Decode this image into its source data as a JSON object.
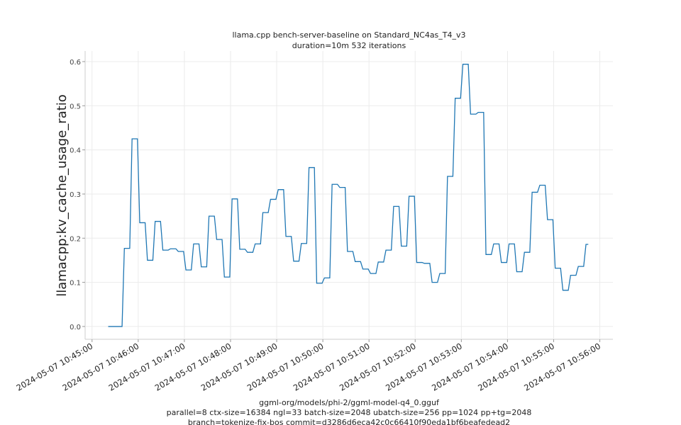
{
  "chart_data": {
    "type": "line",
    "title": [
      "llama.cpp bench-server-baseline on Standard_NC4as_T4_v3",
      "duration=10m 532 iterations"
    ],
    "ylabel": "llamacpp:kv_cache_usage_ratio",
    "xlabel": [
      "ggml-org/models/phi-2/ggml-model-q4_0.gguf",
      "parallel=8 ctx-size=16384 ngl=33 batch-size=2048 ubatch-size=256 pp=1024 pp+tg=2048",
      "branch=tokenize-fix-bos commit=d3286d6eca42c0c66410f90eda1bf6beafedead2"
    ],
    "color": "#1f77b4",
    "grid": true,
    "xlim": [
      "2024-05-07 10:44:51",
      "2024-05-07 10:56:17"
    ],
    "xticks": [
      "2024-05-07 10:45:00",
      "2024-05-07 10:46:00",
      "2024-05-07 10:47:00",
      "2024-05-07 10:48:00",
      "2024-05-07 10:49:00",
      "2024-05-07 10:50:00",
      "2024-05-07 10:51:00",
      "2024-05-07 10:52:00",
      "2024-05-07 10:53:00",
      "2024-05-07 10:54:00",
      "2024-05-07 10:55:00",
      "2024-05-07 10:56:00"
    ],
    "ylim": [
      -0.029,
      0.624
    ],
    "yticks": [
      {
        "value": 0,
        "label": "0.0"
      },
      0.1,
      0.2,
      0.3,
      0.4,
      0.5,
      0.6
    ],
    "x": [
      "2024-05-07 10:45:21",
      "2024-05-07 10:45:39",
      "2024-05-07 10:45:42",
      "2024-05-07 10:45:49",
      "2024-05-07 10:45:52",
      "2024-05-07 10:45:59",
      "2024-05-07 10:46:02",
      "2024-05-07 10:46:09",
      "2024-05-07 10:46:12",
      "2024-05-07 10:46:19",
      "2024-05-07 10:46:22",
      "2024-05-07 10:46:29",
      "2024-05-07 10:46:32",
      "2024-05-07 10:46:39",
      "2024-05-07 10:46:42",
      "2024-05-07 10:46:49",
      "2024-05-07 10:46:52",
      "2024-05-07 10:46:59",
      "2024-05-07 10:47:02",
      "2024-05-07 10:47:09",
      "2024-05-07 10:47:12",
      "2024-05-07 10:47:19",
      "2024-05-07 10:47:22",
      "2024-05-07 10:47:29",
      "2024-05-07 10:47:32",
      "2024-05-07 10:47:39",
      "2024-05-07 10:47:42",
      "2024-05-07 10:47:49",
      "2024-05-07 10:47:52",
      "2024-05-07 10:47:59",
      "2024-05-07 10:48:02",
      "2024-05-07 10:48:09",
      "2024-05-07 10:48:12",
      "2024-05-07 10:48:19",
      "2024-05-07 10:48:22",
      "2024-05-07 10:48:29",
      "2024-05-07 10:48:32",
      "2024-05-07 10:48:39",
      "2024-05-07 10:48:42",
      "2024-05-07 10:48:49",
      "2024-05-07 10:48:52",
      "2024-05-07 10:48:59",
      "2024-05-07 10:49:02",
      "2024-05-07 10:49:09",
      "2024-05-07 10:49:12",
      "2024-05-07 10:49:19",
      "2024-05-07 10:49:22",
      "2024-05-07 10:49:29",
      "2024-05-07 10:49:32",
      "2024-05-07 10:49:39",
      "2024-05-07 10:49:42",
      "2024-05-07 10:49:49",
      "2024-05-07 10:49:52",
      "2024-05-07 10:49:59",
      "2024-05-07 10:50:02",
      "2024-05-07 10:50:09",
      "2024-05-07 10:50:12",
      "2024-05-07 10:50:19",
      "2024-05-07 10:50:22",
      "2024-05-07 10:50:29",
      "2024-05-07 10:50:32",
      "2024-05-07 10:50:39",
      "2024-05-07 10:50:42",
      "2024-05-07 10:50:49",
      "2024-05-07 10:50:52",
      "2024-05-07 10:50:59",
      "2024-05-07 10:51:02",
      "2024-05-07 10:51:09",
      "2024-05-07 10:51:12",
      "2024-05-07 10:51:19",
      "2024-05-07 10:51:22",
      "2024-05-07 10:51:29",
      "2024-05-07 10:51:32",
      "2024-05-07 10:51:39",
      "2024-05-07 10:51:42",
      "2024-05-07 10:51:49",
      "2024-05-07 10:51:52",
      "2024-05-07 10:51:59",
      "2024-05-07 10:52:02",
      "2024-05-07 10:52:09",
      "2024-05-07 10:52:12",
      "2024-05-07 10:52:19",
      "2024-05-07 10:52:22",
      "2024-05-07 10:52:29",
      "2024-05-07 10:52:32",
      "2024-05-07 10:52:39",
      "2024-05-07 10:52:42",
      "2024-05-07 10:52:49",
      "2024-05-07 10:52:52",
      "2024-05-07 10:52:59",
      "2024-05-07 10:53:02",
      "2024-05-07 10:53:09",
      "2024-05-07 10:53:12",
      "2024-05-07 10:53:19",
      "2024-05-07 10:53:22",
      "2024-05-07 10:53:29",
      "2024-05-07 10:53:32",
      "2024-05-07 10:53:39",
      "2024-05-07 10:53:42",
      "2024-05-07 10:53:49",
      "2024-05-07 10:53:52",
      "2024-05-07 10:53:59",
      "2024-05-07 10:54:02",
      "2024-05-07 10:54:09",
      "2024-05-07 10:54:12",
      "2024-05-07 10:54:19",
      "2024-05-07 10:54:22",
      "2024-05-07 10:54:29",
      "2024-05-07 10:54:32",
      "2024-05-07 10:54:39",
      "2024-05-07 10:54:42",
      "2024-05-07 10:54:49",
      "2024-05-07 10:54:52",
      "2024-05-07 10:54:59",
      "2024-05-07 10:55:02",
      "2024-05-07 10:55:09",
      "2024-05-07 10:55:12",
      "2024-05-07 10:55:19",
      "2024-05-07 10:55:22",
      "2024-05-07 10:55:29",
      "2024-05-07 10:55:32",
      "2024-05-07 10:55:39",
      "2024-05-07 10:55:42",
      "2024-05-07 10:55:45"
    ],
    "values": [
      0,
      0,
      0.177,
      0.177,
      0.425,
      0.425,
      0.235,
      0.235,
      0.15,
      0.15,
      0.238,
      0.238,
      0.173,
      0.173,
      0.176,
      0.176,
      0.17,
      0.17,
      0.128,
      0.128,
      0.187,
      0.187,
      0.135,
      0.135,
      0.25,
      0.25,
      0.197,
      0.197,
      0.112,
      0.112,
      0.289,
      0.289,
      0.175,
      0.175,
      0.168,
      0.168,
      0.187,
      0.187,
      0.258,
      0.258,
      0.288,
      0.288,
      0.31,
      0.31,
      0.204,
      0.204,
      0.148,
      0.148,
      0.188,
      0.188,
      0.36,
      0.36,
      0.098,
      0.098,
      0.11,
      0.11,
      0.322,
      0.322,
      0.315,
      0.315,
      0.17,
      0.17,
      0.147,
      0.147,
      0.13,
      0.13,
      0.12,
      0.12,
      0.146,
      0.146,
      0.173,
      0.173,
      0.272,
      0.272,
      0.182,
      0.182,
      0.295,
      0.295,
      0.145,
      0.145,
      0.143,
      0.143,
      0.1,
      0.1,
      0.12,
      0.12,
      0.34,
      0.34,
      0.517,
      0.517,
      0.594,
      0.594,
      0.481,
      0.481,
      0.485,
      0.485,
      0.163,
      0.163,
      0.187,
      0.187,
      0.145,
      0.145,
      0.187,
      0.187,
      0.124,
      0.124,
      0.168,
      0.168,
      0.304,
      0.304,
      0.32,
      0.32,
      0.242,
      0.242,
      0.132,
      0.132,
      0.082,
      0.082,
      0.116,
      0.116,
      0.136,
      0.136,
      0.186,
      0.186
    ]
  }
}
